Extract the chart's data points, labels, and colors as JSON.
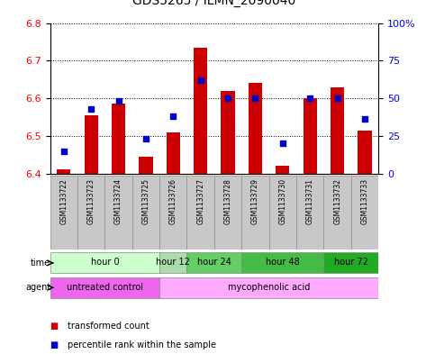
{
  "title": "GDS5265 / ILMN_2090040",
  "samples": [
    "GSM1133722",
    "GSM1133723",
    "GSM1133724",
    "GSM1133725",
    "GSM1133726",
    "GSM1133727",
    "GSM1133728",
    "GSM1133729",
    "GSM1133730",
    "GSM1133731",
    "GSM1133732",
    "GSM1133733"
  ],
  "bar_values": [
    6.41,
    6.555,
    6.585,
    6.445,
    6.51,
    6.735,
    6.62,
    6.64,
    6.42,
    6.6,
    6.63,
    6.515
  ],
  "bar_base": 6.4,
  "percentile_values": [
    15,
    43,
    48,
    23,
    38,
    62,
    50,
    50,
    20,
    50,
    50,
    36
  ],
  "ylim_left": [
    6.4,
    6.8
  ],
  "ylim_right": [
    0,
    100
  ],
  "yticks_left": [
    6.4,
    6.5,
    6.6,
    6.7,
    6.8
  ],
  "yticks_right": [
    0,
    25,
    50,
    75,
    100
  ],
  "ytick_labels_right": [
    "0",
    "25",
    "50",
    "75",
    "100%"
  ],
  "bar_color": "#cc0000",
  "dot_color": "#0000cc",
  "background_sample": "#c8c8c8",
  "time_groups": [
    {
      "label": "hour 0",
      "start": 0,
      "end": 3,
      "color": "#ccffcc"
    },
    {
      "label": "hour 12",
      "start": 4,
      "end": 4,
      "color": "#aaddaa"
    },
    {
      "label": "hour 24",
      "start": 5,
      "end": 6,
      "color": "#66cc66"
    },
    {
      "label": "hour 48",
      "start": 7,
      "end": 9,
      "color": "#44bb44"
    },
    {
      "label": "hour 72",
      "start": 10,
      "end": 11,
      "color": "#22aa22"
    }
  ],
  "agent_groups": [
    {
      "label": "untreated control",
      "start": 0,
      "end": 3,
      "color": "#ee66ee"
    },
    {
      "label": "mycophenolic acid",
      "start": 4,
      "end": 11,
      "color": "#ffaaff"
    }
  ],
  "legend_items": [
    {
      "label": "transformed count",
      "color": "#cc0000"
    },
    {
      "label": "percentile rank within the sample",
      "color": "#0000cc"
    }
  ]
}
